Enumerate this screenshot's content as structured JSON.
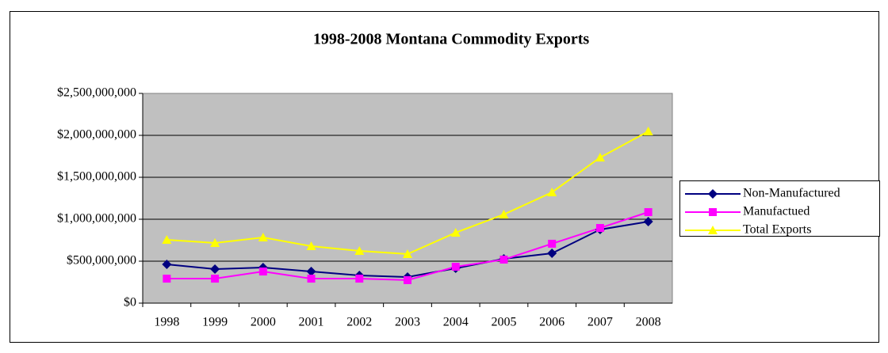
{
  "chart_data": {
    "type": "line",
    "title": "1998-2008 Montana Commodity Exports",
    "categories": [
      "1998",
      "1999",
      "2000",
      "2001",
      "2002",
      "2003",
      "2004",
      "2005",
      "2006",
      "2007",
      "2008"
    ],
    "series": [
      {
        "name": "Non-Manufactured",
        "color": "#000080",
        "marker": "diamond",
        "values": [
          462000000,
          406000000,
          425000000,
          377000000,
          330000000,
          311000000,
          415000000,
          528000000,
          594000000,
          877000000,
          972000000
        ]
      },
      {
        "name": "Manufactued",
        "color": "#ff00ff",
        "marker": "square",
        "values": [
          292000000,
          292000000,
          377000000,
          292000000,
          292000000,
          274000000,
          434000000,
          519000000,
          708000000,
          896000000,
          1085000000
        ]
      },
      {
        "name": "Total Exports",
        "color": "#ffff00",
        "marker": "triangle",
        "values": [
          755000000,
          717000000,
          783000000,
          679000000,
          623000000,
          585000000,
          840000000,
          1057000000,
          1321000000,
          1736000000,
          2047000000
        ]
      }
    ],
    "ylim": [
      0,
      2500000000
    ],
    "yticks": [
      {
        "value": 0,
        "label": "$0"
      },
      {
        "value": 500000000,
        "label": "$500,000,000"
      },
      {
        "value": 1000000000,
        "label": "$1,000,000,000"
      },
      {
        "value": 1500000000,
        "label": "$1,500,000,000"
      },
      {
        "value": 2000000000,
        "label": "$2,000,000,000"
      },
      {
        "value": 2500000000,
        "label": "$2,500,000,000"
      }
    ],
    "grid": true,
    "legend": "right"
  }
}
